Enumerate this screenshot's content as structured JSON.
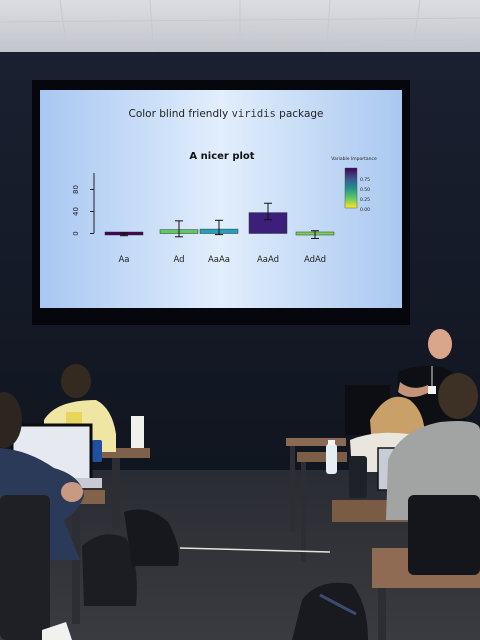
{
  "slide": {
    "title_prefix": "Color blind friendly ",
    "title_code": "viridis",
    "title_suffix": " package"
  },
  "chart_data": {
    "type": "bar",
    "title": "A nicer plot",
    "categories": [
      "Aa",
      "Ad",
      "AaAa",
      "AaAd",
      "AdAd"
    ],
    "values": [
      -2,
      7,
      8,
      38,
      -4
    ],
    "error_low": [
      -4,
      -6,
      -2,
      25,
      -9
    ],
    "error_high": [
      1,
      23,
      24,
      55,
      5
    ],
    "bar_colors": [
      "#440154",
      "#5ec962",
      "#21a2b8",
      "#3b1f7a",
      "#7ad151"
    ],
    "yticks": [
      0,
      40,
      80
    ],
    "ylim": [
      -10,
      110
    ],
    "legend": {
      "title": "Variable Importance",
      "labels": [
        "0.75",
        "0.50",
        "0.25",
        "0.00"
      ],
      "position": "top-right",
      "colormap": "viridis"
    }
  }
}
